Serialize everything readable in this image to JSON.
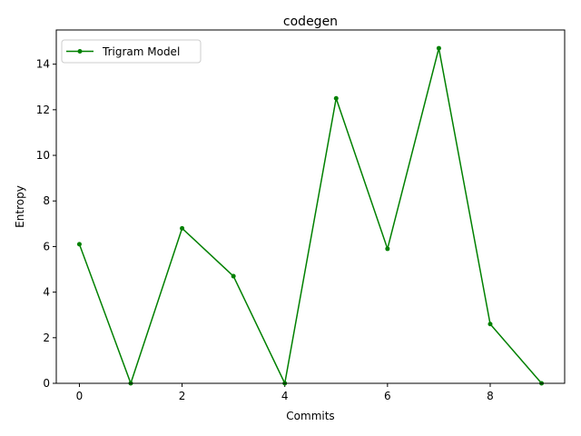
{
  "chart_data": {
    "type": "line",
    "title": "codegen",
    "xlabel": "Commits",
    "ylabel": "Entropy",
    "xlim": [
      -0.45,
      9.45
    ],
    "ylim": [
      0,
      15.5
    ],
    "xticks": [
      0,
      2,
      4,
      6,
      8
    ],
    "yticks": [
      0,
      2,
      4,
      6,
      8,
      10,
      12,
      14
    ],
    "grid": false,
    "legend_position": "upper left",
    "series": [
      {
        "name": "Trigram Model",
        "color": "#008000",
        "marker": "circle",
        "x": [
          0,
          1,
          2,
          3,
          4,
          5,
          6,
          7,
          8,
          9
        ],
        "y": [
          6.1,
          0.0,
          6.8,
          4.7,
          0.0,
          12.5,
          5.9,
          14.7,
          2.6,
          0.0
        ]
      }
    ]
  }
}
